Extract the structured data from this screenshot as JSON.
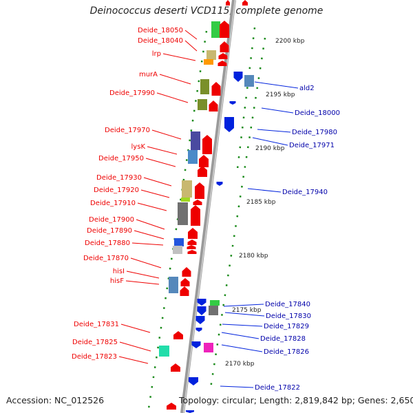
{
  "title": "Deinococcus deserti VCD115, complete genome",
  "accession": "Accession: NC_012526",
  "topology": "Topology: circular; Length: 2,819,842 bp; Genes: 2,650",
  "colors": {
    "forward": "#ee0000",
    "reverse": "#0022dd",
    "backbone": "#9a9a9a",
    "tick": "#1a8a1a"
  },
  "scale_labels": [
    "2200 kbp",
    "2195 kbp",
    "2190 kbp",
    "2185 kbp",
    "2180 kbp",
    "2175 kbp",
    "2170 kbp"
  ],
  "forward_labels": [
    "Deide_18050",
    "Deide_18040",
    "lrp",
    "murA",
    "Deide_17990",
    "Deide_17970",
    "lysK",
    "Deide_17950",
    "Deide_17930",
    "Deide_17920",
    "Deide_17910",
    "Deide_17900",
    "Deide_17890",
    "Deide_17880",
    "Deide_17870",
    "hisI",
    "hisF",
    "Deide_17831",
    "Deide_17825",
    "Deide_17823"
  ],
  "reverse_labels": [
    "ald2",
    "Deide_18000",
    "Deide_17980",
    "Deide_17971",
    "Deide_17940",
    "Deide_17840",
    "Deide_17830",
    "Deide_17829",
    "Deide_17828",
    "Deide_17826",
    "Deide_17822"
  ]
}
